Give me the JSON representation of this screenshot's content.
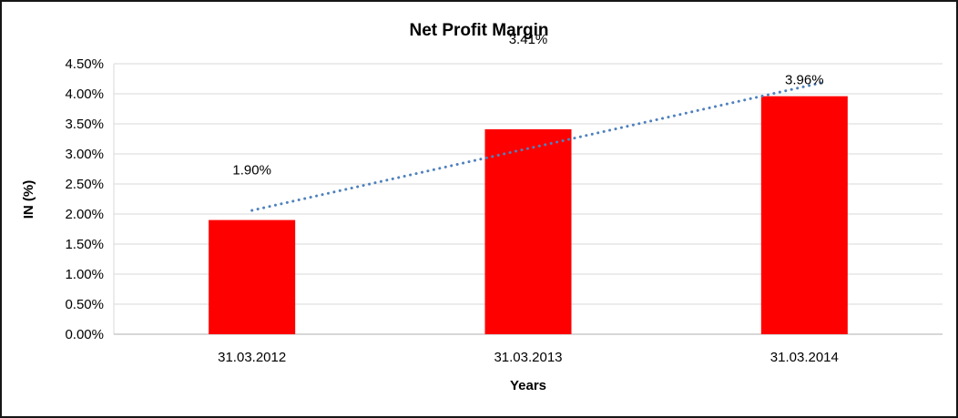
{
  "chart_data": {
    "type": "bar",
    "title": "Net Profit Margin",
    "xlabel": "Years",
    "ylabel": "IN (%)",
    "categories": [
      "31.03.2012",
      "31.03.2013",
      "31.03.2014"
    ],
    "values": [
      1.9,
      3.41,
      3.96
    ],
    "data_labels": [
      "1.90%",
      "3.41%",
      "3.96%"
    ],
    "y_ticks": [
      "0.00%",
      "0.50%",
      "1.00%",
      "1.50%",
      "2.00%",
      "2.50%",
      "3.00%",
      "3.50%",
      "4.00%",
      "4.50%"
    ],
    "ylim": [
      0,
      4.5
    ],
    "y_tick_step": 0.5,
    "grid": true,
    "legend": "none",
    "bar_color": "#ff0000",
    "gridline_color": "#d9d9d9",
    "axis_line_color": "#bfbfbf",
    "trendline": {
      "type": "linear",
      "style": "dotted",
      "color": "#4f81bd"
    }
  }
}
